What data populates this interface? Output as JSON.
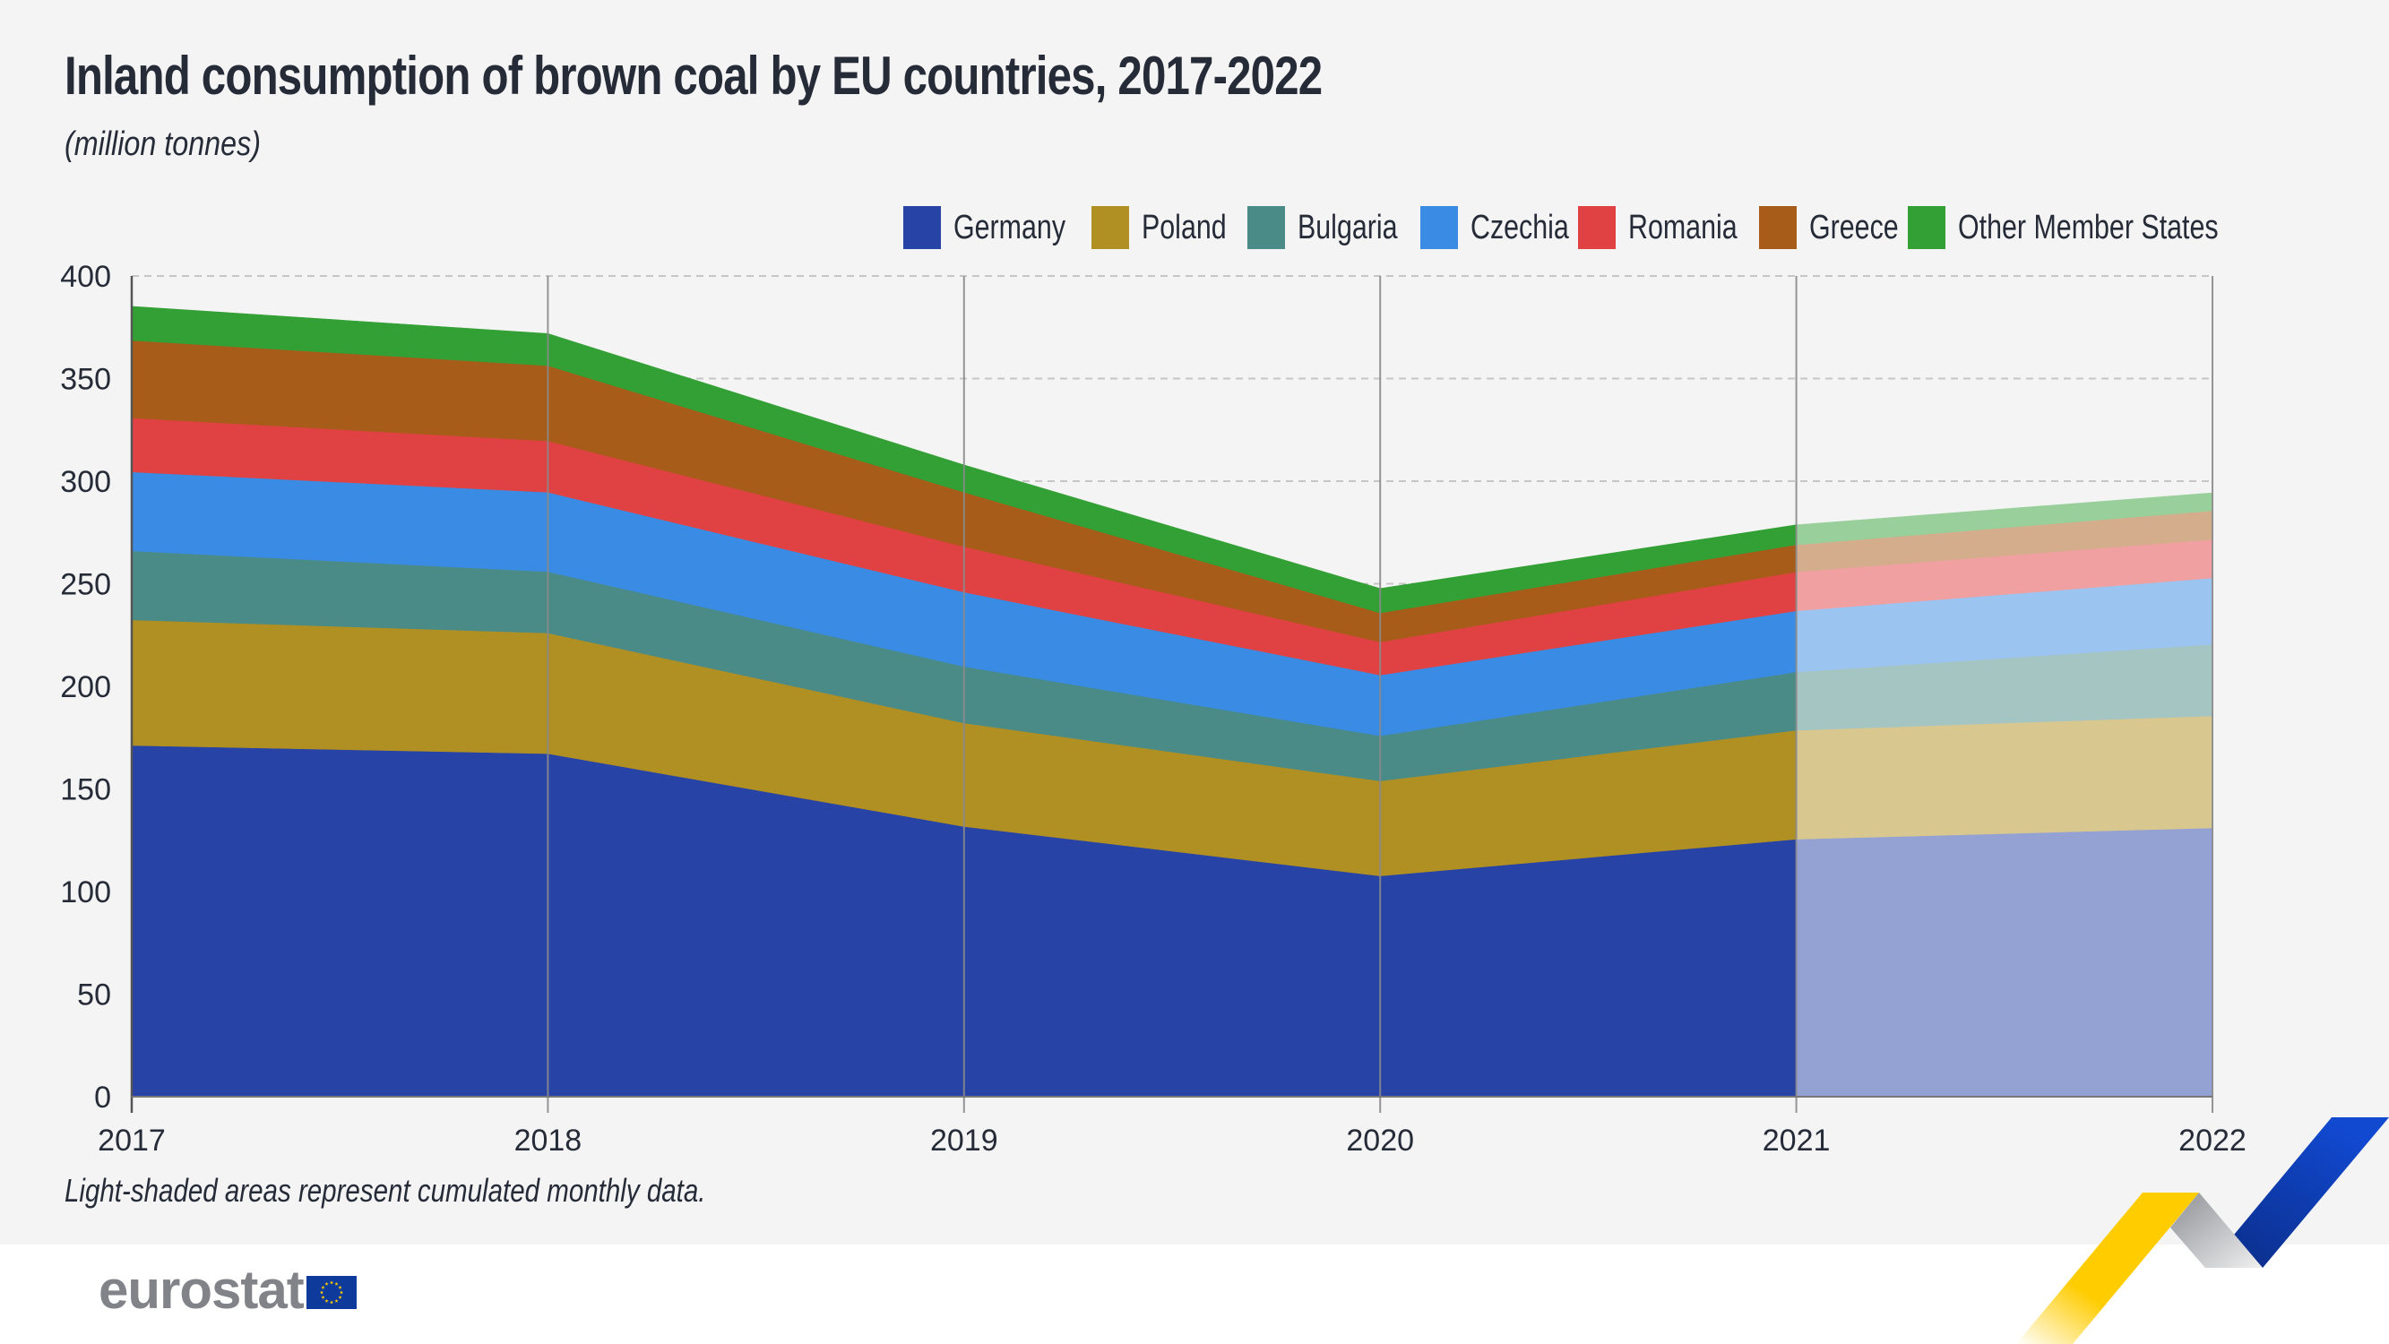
{
  "header": {
    "title": "Inland consumption of brown coal by EU countries, 2017-2022",
    "subtitle": "(million tonnes)"
  },
  "footnote": "Light-shaded areas represent cumulated monthly data.",
  "branding": {
    "logo_text": "eurostat",
    "flag_icon": "eu-flag-icon"
  },
  "chart_data": {
    "type": "area",
    "stacked": true,
    "title": "Inland consumption of brown coal by EU countries, 2017-2022",
    "subtitle": "(million tonnes)",
    "xlabel": "",
    "ylabel": "million tonnes",
    "x": [
      "2017",
      "2018",
      "2019",
      "2020",
      "2021",
      "2022"
    ],
    "ylim": [
      0,
      400
    ],
    "yticks": [
      0,
      50,
      100,
      150,
      200,
      250,
      300,
      350,
      400
    ],
    "grid": true,
    "legend_position": "top-right",
    "light_shaded_from": "2021",
    "light_shaded_to": "2022",
    "annotation": "Light-shaded areas represent cumulated monthly data.",
    "series": [
      {
        "name": "Germany",
        "color": "#2743a6",
        "light_color": "#94a2d3",
        "values": [
          171.2,
          167.2,
          131.7,
          107.6,
          125.5,
          131.0
        ]
      },
      {
        "name": "Poland",
        "color": "#b08f23",
        "light_color": "#d8c78f",
        "values": [
          61.2,
          58.8,
          50.4,
          46.3,
          53.1,
          54.6
        ]
      },
      {
        "name": "Bulgaria",
        "color": "#4a8b88",
        "light_color": "#a5c5c3",
        "values": [
          33.6,
          29.9,
          27.6,
          22.0,
          28.4,
          34.9
        ]
      },
      {
        "name": "Czechia",
        "color": "#3a8be3",
        "light_color": "#9cc4f1",
        "values": [
          38.5,
          38.7,
          36.2,
          29.6,
          29.8,
          32.3
        ]
      },
      {
        "name": "Romania",
        "color": "#e04244",
        "light_color": "#f0a0a1",
        "values": [
          26.3,
          25.0,
          22.2,
          16.1,
          19.0,
          18.8
        ]
      },
      {
        "name": "Greece",
        "color": "#a85c19",
        "light_color": "#d4ad8c",
        "values": [
          37.8,
          36.7,
          26.5,
          14.2,
          13.2,
          14.0
        ]
      },
      {
        "name": "Other Member States",
        "color": "#33a035",
        "light_color": "#99cf9a",
        "values": [
          16.6,
          15.6,
          13.3,
          11.9,
          9.7,
          8.7
        ]
      }
    ]
  }
}
